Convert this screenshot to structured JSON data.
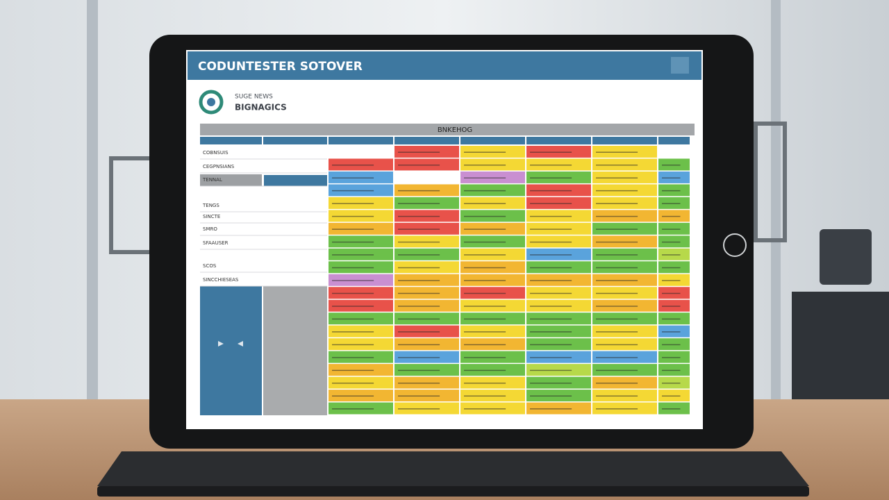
{
  "header": {
    "title": "CODUNTESTER SOTOVER"
  },
  "brand": {
    "line1": "SUGE NEWS",
    "line2": "BIGNAGICS"
  },
  "banner": "BNKEHOG",
  "sidebar": {
    "items": [
      "COBNSUIS",
      "CEGPNSIANS",
      "TENNAL",
      "TENGS",
      "SINCTE",
      "SMRO",
      "SFAAUSER",
      "SCOS",
      "SINCCHIESEAS"
    ]
  }
}
